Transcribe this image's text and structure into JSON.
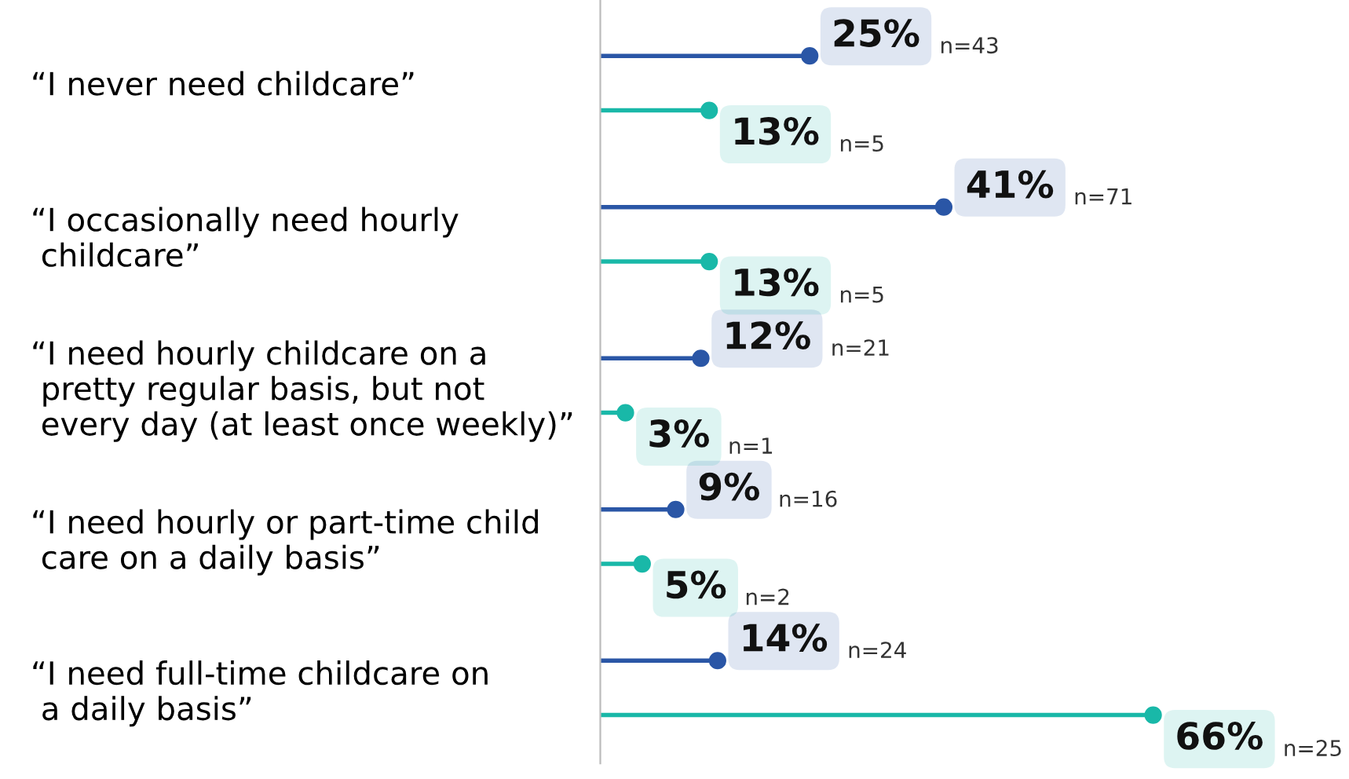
{
  "chart_data": {
    "type": "lollipop",
    "orientation": "horizontal",
    "marker": "circle",
    "tick_labels": "y",
    "grid": false,
    "categories": [
      "“I never need childcare”",
      "“I occasionally need hourly\n childcare”",
      "“I need hourly childcare on a\n pretty regular basis, but not\n every day (at least once weekly)”",
      "“I need hourly or part-time child\n care on a daily basis”",
      "“I need full-time childcare on\n a daily basis”"
    ],
    "series": [
      {
        "color": "#2a56a6",
        "values": [
          25,
          41,
          12,
          9,
          14
        ],
        "value_labels": [
          "25%",
          "41%",
          "12%",
          "9%",
          "14%"
        ]
      },
      {
        "color": "#19b8a8",
        "values": [
          13,
          13,
          3,
          5,
          66
        ],
        "value_labels": [
          "13%",
          "13%",
          "3%",
          "5%",
          "66%"
        ]
      }
    ],
    "annotations": [
      "n=43",
      "n=5",
      "n=71",
      "n=5",
      "n=21",
      "n=1",
      "n=16",
      "n=2",
      "n=24",
      "n=25"
    ]
  }
}
